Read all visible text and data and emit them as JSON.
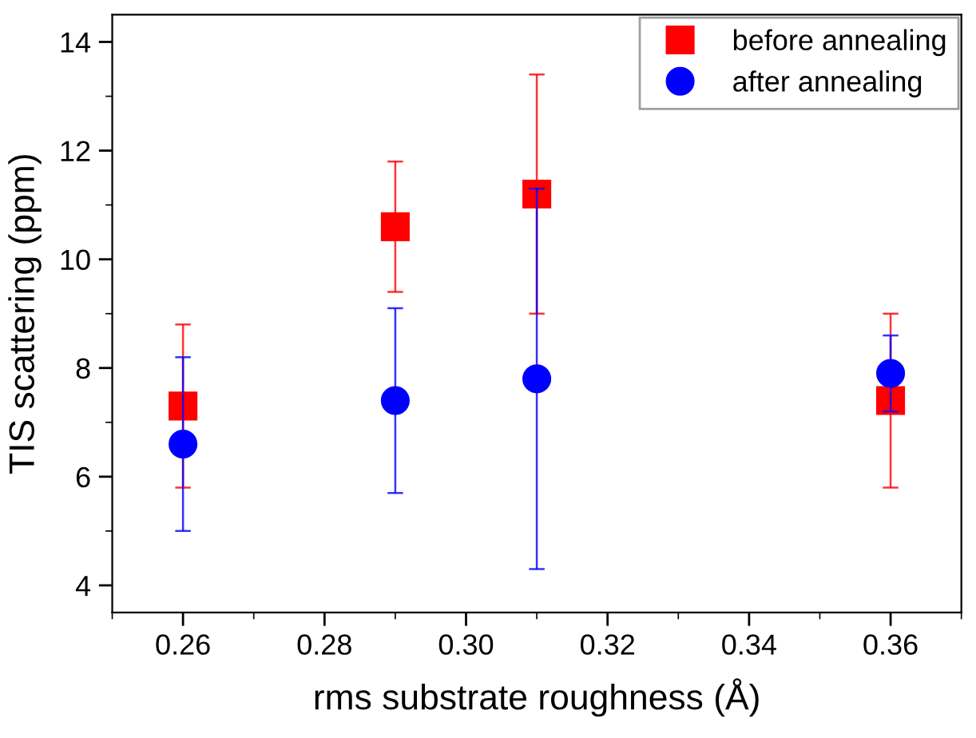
{
  "chart_data": {
    "type": "scatter",
    "xlabel": "rms substrate roughness (Å)",
    "ylabel": "TIS scattering (ppm)",
    "x": [
      0.26,
      0.29,
      0.31,
      0.36
    ],
    "series": [
      {
        "name": "before annealing",
        "color": "#ff0000",
        "marker": "square",
        "values": [
          7.3,
          10.6,
          11.2,
          7.4
        ],
        "errors": [
          [
            5.8,
            8.8
          ],
          [
            9.4,
            11.8
          ],
          [
            9.0,
            13.4
          ],
          [
            5.8,
            9.0
          ]
        ]
      },
      {
        "name": "after annealing",
        "color": "#0000ff",
        "marker": "circle",
        "values": [
          6.6,
          7.4,
          7.8,
          7.9
        ],
        "errors": [
          [
            5.0,
            8.2
          ],
          [
            5.7,
            9.1
          ],
          [
            4.3,
            11.3
          ],
          [
            7.2,
            8.6
          ]
        ]
      }
    ],
    "xlim": [
      0.25,
      0.37
    ],
    "xticks": [
      {
        "value": 0.26,
        "label": "0.26"
      },
      {
        "value": 0.28,
        "label": "0.28"
      },
      {
        "value": 0.3,
        "label": "0.30"
      },
      {
        "value": 0.32,
        "label": "0.32"
      },
      {
        "value": 0.34,
        "label": "0.34"
      },
      {
        "value": 0.36,
        "label": "0.36"
      }
    ],
    "ylim": [
      3.5,
      14.5
    ],
    "yticks": [
      4,
      6,
      8,
      10,
      12,
      14
    ],
    "grid": false,
    "legend": "top right"
  }
}
